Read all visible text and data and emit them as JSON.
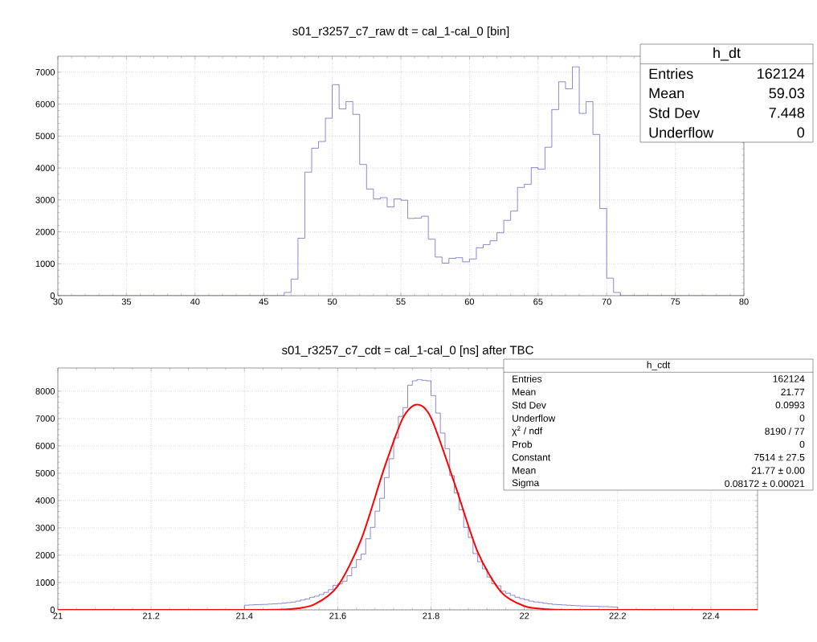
{
  "chart_data": [
    {
      "type": "histogram",
      "title": "s01_r3257_c7_raw dt = cal_1-cal_0 [bin]",
      "color": "#3a3ab4",
      "grid": true,
      "bins": [
        30,
        30.5,
        31,
        31.5,
        32,
        32.5,
        33,
        33.5,
        34,
        34.5,
        35,
        35.5,
        36,
        36.5,
        37,
        37.5,
        38,
        38.5,
        39,
        39.5,
        40,
        40.5,
        41,
        41.5,
        42,
        42.5,
        43,
        43.5,
        44,
        44.5,
        45,
        45.5,
        46,
        46.5,
        47,
        47.5,
        48,
        48.5,
        49,
        49.5,
        50,
        50.5,
        51,
        51.5,
        52,
        52.5,
        53,
        53.5,
        54,
        54.5,
        55,
        55.5,
        56,
        56.5,
        57,
        57.5,
        58,
        58.5,
        59,
        59.5,
        60,
        60.5,
        61,
        61.5,
        62,
        62.5,
        63,
        63.5,
        64,
        64.5,
        65,
        65.5,
        66,
        66.5,
        67,
        67.5,
        68,
        68.5,
        69,
        69.5,
        70,
        70.5,
        71,
        71.5,
        72,
        72.5,
        73,
        73.5,
        74,
        74.5,
        75,
        75.5,
        76,
        76.5,
        77,
        77.5,
        78,
        78.5,
        79,
        79.5,
        80
      ],
      "values": [
        0,
        0,
        0,
        0,
        0,
        0,
        0,
        0,
        0,
        0,
        0,
        0,
        0,
        0,
        0,
        0,
        0,
        0,
        0,
        0,
        0,
        0,
        0,
        0,
        0,
        0,
        0,
        0,
        0,
        0,
        0,
        0,
        0,
        100,
        520,
        1800,
        3870,
        4620,
        4830,
        5560,
        6610,
        5850,
        6080,
        5680,
        4110,
        3340,
        3030,
        3070,
        2780,
        3030,
        2990,
        2420,
        2430,
        2490,
        1770,
        1210,
        1020,
        1170,
        1190,
        1060,
        1150,
        1500,
        1600,
        1720,
        1970,
        2360,
        2650,
        3390,
        3490,
        4010,
        3960,
        4650,
        5830,
        6700,
        6480,
        7170,
        5710,
        6080,
        5050,
        2730,
        550,
        100,
        0,
        0,
        0,
        0,
        0,
        0,
        0,
        0,
        0,
        0,
        0,
        0,
        0,
        0,
        0,
        0,
        0,
        0
      ],
      "xlim": [
        30,
        80
      ],
      "ylim": [
        0,
        7500
      ],
      "xticks": [
        30,
        35,
        40,
        45,
        50,
        55,
        60,
        65,
        70,
        75,
        80
      ],
      "yticks": [
        0,
        1000,
        2000,
        3000,
        4000,
        5000,
        6000,
        7000
      ],
      "annotations": [
        "h_dt",
        "Entries",
        "162124",
        "Mean",
        "59.03",
        "Std Dev",
        "7.448",
        "Underflow",
        "0"
      ]
    },
    {
      "type": "histogram",
      "title": "s01_r3257_c7_cdt = cal_1-cal_0 [ns] after TBC",
      "color": "#3a3ab4",
      "grid": true,
      "bins": [
        21,
        21.01,
        21.02,
        21.03,
        21.04,
        21.05,
        21.06,
        21.07,
        21.08,
        21.09,
        21.1,
        21.11,
        21.12,
        21.13,
        21.14,
        21.15,
        21.16,
        21.17,
        21.18,
        21.19,
        21.2,
        21.21,
        21.22,
        21.23,
        21.24,
        21.25,
        21.26,
        21.27,
        21.28,
        21.29,
        21.3,
        21.31,
        21.32,
        21.33,
        21.34,
        21.35,
        21.36,
        21.37,
        21.38,
        21.39,
        21.4,
        21.41,
        21.42,
        21.43,
        21.44,
        21.45,
        21.46,
        21.47,
        21.48,
        21.49,
        21.5,
        21.51,
        21.52,
        21.53,
        21.54,
        21.55,
        21.56,
        21.57,
        21.58,
        21.59,
        21.6,
        21.61,
        21.62,
        21.63,
        21.64,
        21.65,
        21.66,
        21.67,
        21.68,
        21.69,
        21.7,
        21.71,
        21.72,
        21.73,
        21.74,
        21.75,
        21.76,
        21.77,
        21.78,
        21.79,
        21.8,
        21.81,
        21.82,
        21.83,
        21.84,
        21.85,
        21.86,
        21.87,
        21.88,
        21.89,
        21.9,
        21.91,
        21.92,
        21.93,
        21.94,
        21.95,
        21.96,
        21.97,
        21.98,
        21.99,
        22,
        22.01,
        22.02,
        22.03,
        22.04,
        22.05,
        22.06,
        22.07,
        22.08,
        22.09,
        22.1,
        22.11,
        22.12,
        22.13,
        22.14,
        22.15,
        22.16,
        22.17,
        22.18,
        22.19,
        22.2,
        22.21,
        22.22,
        22.23,
        22.24,
        22.25,
        22.26,
        22.27,
        22.28,
        22.29,
        22.3,
        22.31,
        22.32,
        22.33,
        22.34,
        22.35,
        22.36,
        22.37,
        22.38,
        22.39,
        22.4,
        22.41,
        22.42,
        22.43,
        22.44,
        22.45,
        22.46,
        22.47,
        22.48,
        22.49,
        22.5
      ],
      "values": [
        0,
        0,
        0,
        0,
        0,
        0,
        0,
        0,
        0,
        0,
        0,
        0,
        0,
        0,
        0,
        0,
        0,
        0,
        0,
        0,
        0,
        0,
        0,
        0,
        0,
        0,
        0,
        0,
        0,
        0,
        0,
        0,
        0,
        0,
        0,
        0,
        0,
        0,
        0,
        0,
        170,
        180,
        190,
        195,
        200,
        210,
        220,
        230,
        245,
        265,
        285,
        320,
        360,
        400,
        460,
        500,
        560,
        640,
        740,
        900,
        950,
        1050,
        1250,
        1550,
        1840,
        2040,
        2600,
        3020,
        3610,
        4080,
        4840,
        5530,
        6290,
        7080,
        7400,
        8220,
        8380,
        8430,
        8400,
        8380,
        7840,
        7200,
        6470,
        5900,
        4910,
        4280,
        3660,
        3020,
        2650,
        2060,
        1760,
        1500,
        1200,
        950,
        880,
        680,
        610,
        530,
        460,
        410,
        370,
        320,
        290,
        270,
        240,
        220,
        200,
        190,
        180,
        170,
        160,
        150,
        140,
        140,
        130,
        130,
        120,
        120,
        110,
        100,
        0,
        0,
        0,
        0,
        0,
        0,
        0,
        0,
        0,
        0,
        0,
        0,
        0,
        0,
        0,
        0,
        0,
        0,
        0,
        0,
        0,
        0,
        0,
        0,
        0,
        0,
        0,
        0,
        0,
        0
      ],
      "series": [
        {
          "type": "line",
          "color": "#ff0000",
          "x": [
            21,
            21.4,
            21.5,
            21.55,
            21.6,
            21.65,
            21.7,
            21.74,
            21.77,
            21.8,
            21.85,
            21.9,
            21.95,
            22,
            22.05,
            22.1,
            22.2,
            22.5
          ],
          "values": [
            0,
            0,
            30,
            200,
            870,
            2560,
            5200,
            7030,
            7510,
            7030,
            4650,
            2120,
            660,
            140,
            20,
            0,
            0,
            0
          ]
        }
      ],
      "xlim": [
        21,
        22.5
      ],
      "ylim": [
        0,
        8850
      ],
      "xticks": [
        21,
        21.2,
        21.4,
        21.6,
        21.8,
        22,
        22.2,
        22.4
      ],
      "yticks": [
        0,
        1000,
        2000,
        3000,
        4000,
        5000,
        6000,
        7000,
        8000
      ],
      "annotations": [
        "h_cdt",
        "Entries",
        "162124",
        "Mean",
        "21.77",
        "Std Dev",
        "0.0993",
        "Underflow",
        "0",
        "χ$^{2}$ / ndf",
        "8190 / 77",
        "Prob",
        "0",
        "Constant",
        "7514 ± 27.5",
        "Mean",
        "21.77 ± 0.00",
        "Sigma",
        "0.08172 ± 0.00021"
      ]
    }
  ]
}
